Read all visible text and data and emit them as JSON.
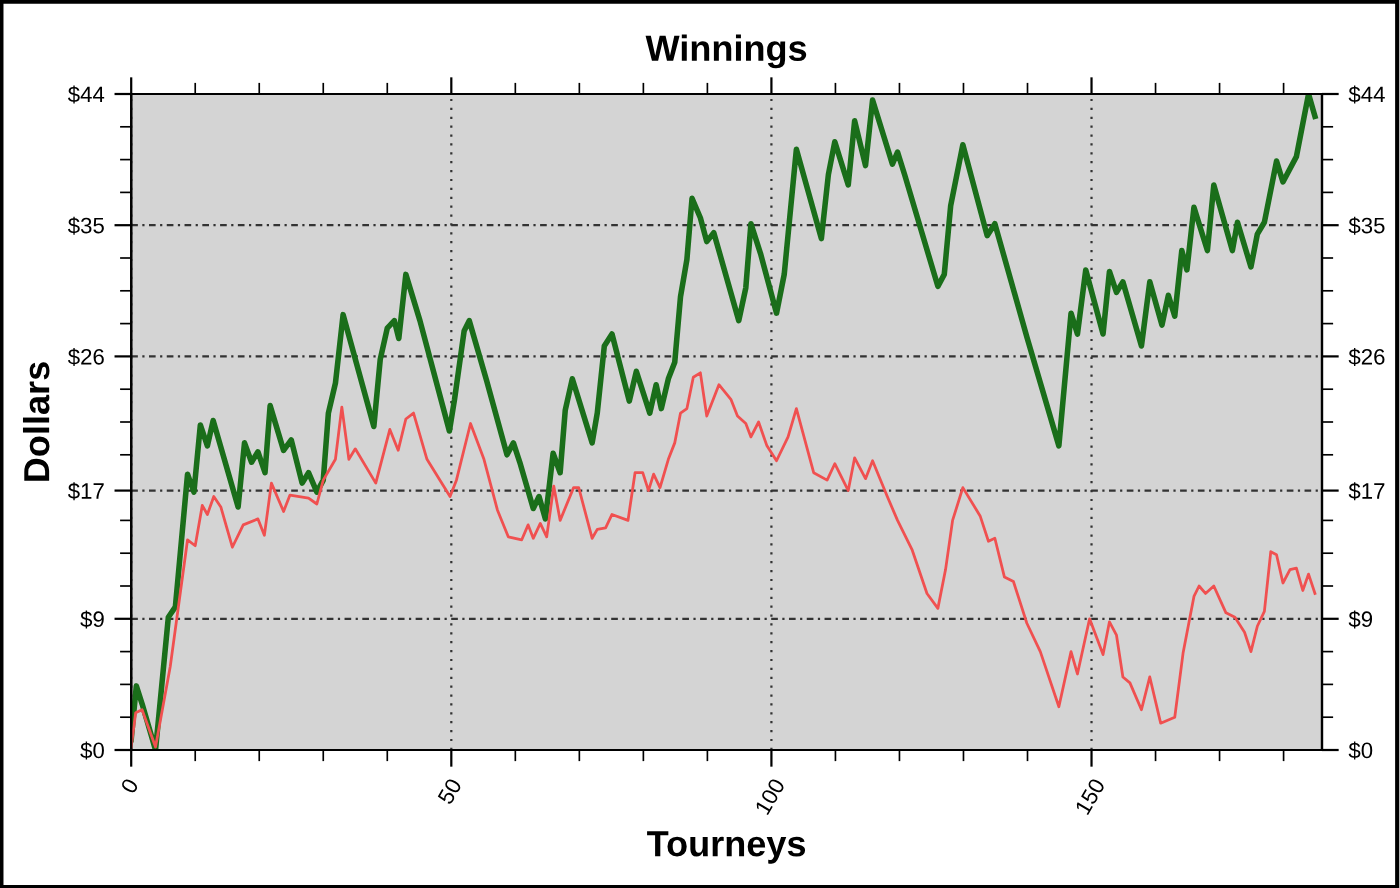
{
  "chart_data": {
    "type": "line",
    "title": "Winnings",
    "xlabel": "Tourneys",
    "ylabel": "Dollars",
    "grid": true,
    "legend": false,
    "marker": "none",
    "line_style": "solid",
    "xlim": [
      0,
      186
    ],
    "ylim": [
      0,
      44
    ],
    "y2lim": [
      0,
      44
    ],
    "xticks": [
      0,
      {
        "value": 10,
        "label": null
      },
      {
        "value": 20,
        "label": null
      },
      {
        "value": 30,
        "label": null
      },
      {
        "value": 40,
        "label": null
      },
      50,
      {
        "value": 60,
        "label": null
      },
      {
        "value": 70,
        "label": null
      },
      {
        "value": 80,
        "label": null
      },
      {
        "value": 90,
        "label": null
      },
      100,
      {
        "value": 110,
        "label": null
      },
      {
        "value": 120,
        "label": null
      },
      {
        "value": 130,
        "label": null
      },
      {
        "value": 140,
        "label": null
      },
      150,
      {
        "value": 160,
        "label": null
      },
      {
        "value": 170,
        "label": null
      },
      {
        "value": 180,
        "label": null
      }
    ],
    "yticks": [
      {
        "value": 0,
        "label": "$0"
      },
      {
        "value": 2.2,
        "label": null
      },
      {
        "value": 4.4,
        "label": null
      },
      {
        "value": 6.6,
        "label": null
      },
      {
        "value": 8.8,
        "label": "$9"
      },
      {
        "value": 11,
        "label": null
      },
      {
        "value": 13.2,
        "label": null
      },
      {
        "value": 15.4,
        "label": null
      },
      {
        "value": 17.4,
        "label": "$17"
      },
      {
        "value": 19.8,
        "label": null
      },
      {
        "value": 22,
        "label": null
      },
      {
        "value": 24.2,
        "label": null
      },
      {
        "value": 26.4,
        "label": "$26"
      },
      {
        "value": 28.6,
        "label": null
      },
      {
        "value": 30.8,
        "label": null
      },
      {
        "value": 33,
        "label": null
      },
      {
        "value": 35.2,
        "label": "$35"
      },
      {
        "value": 37.4,
        "label": null
      },
      {
        "value": 39.6,
        "label": null
      },
      {
        "value": 41.8,
        "label": null
      },
      {
        "value": 44,
        "label": "$44"
      }
    ],
    "y2ticks": [
      {
        "value": 0,
        "label": "$0"
      },
      {
        "value": 2.2,
        "label": null
      },
      {
        "value": 4.4,
        "label": null
      },
      {
        "value": 6.6,
        "label": null
      },
      {
        "value": 8.8,
        "label": "$9"
      },
      {
        "value": 11,
        "label": null
      },
      {
        "value": 13.2,
        "label": null
      },
      {
        "value": 15.4,
        "label": null
      },
      {
        "value": 17.4,
        "label": "$17"
      },
      {
        "value": 19.8,
        "label": null
      },
      {
        "value": 22,
        "label": null
      },
      {
        "value": 24.2,
        "label": null
      },
      {
        "value": 26.4,
        "label": "$26"
      },
      {
        "value": 28.6,
        "label": null
      },
      {
        "value": 30.8,
        "label": null
      },
      {
        "value": 33,
        "label": null
      },
      {
        "value": 35.2,
        "label": "$35"
      },
      {
        "value": 37.4,
        "label": null
      },
      {
        "value": 39.6,
        "label": null
      },
      {
        "value": 41.8,
        "label": null
      },
      {
        "value": 44,
        "label": "$44"
      }
    ],
    "series": [
      {
        "color": "#1a6e1a",
        "x": [
          0,
          0.8,
          1.7,
          3.8,
          5.8,
          6.9,
          8.8,
          9.8,
          10.8,
          11.9,
          12.8,
          16.7,
          17.7,
          18.8,
          19.8,
          20.9,
          21.7,
          23.8,
          25.0,
          26.7,
          27.7,
          29.0,
          30.0,
          30.8,
          31.9,
          33.1,
          37.9,
          38.9,
          40.0,
          41.1,
          41.8,
          42.9,
          45.1,
          49.7,
          50.5,
          52.0,
          52.8,
          55.5,
          58.7,
          59.7,
          60.7,
          62.8,
          63.7,
          64.7,
          65.9,
          67.0,
          67.8,
          68.9,
          72.0,
          72.8,
          73.9,
          75.1,
          77.8,
          78.9,
          81.0,
          82.0,
          82.8,
          83.9,
          84.9,
          85.8,
          86.8,
          87.6,
          88.9,
          89.9,
          91.0,
          94.9,
          96.0,
          96.8,
          98.3,
          100.8,
          102.0,
          103.9,
          107.8,
          108.9,
          109.9,
          112.0,
          113.0,
          114.7,
          115.8,
          118.9,
          119.7,
          120.8,
          126.0,
          127.0,
          128.0,
          129.9,
          133.7,
          134.9,
          139.9,
          144.9,
          146.8,
          147.8,
          149.1,
          151.8,
          152.8,
          153.9,
          154.9,
          157.8,
          159.1,
          161.0,
          162.0,
          163.0,
          164.1,
          164.9,
          166.0,
          168.1,
          169.1,
          172.0,
          172.8,
          174.9,
          175.9,
          177.0,
          178.9,
          179.9,
          182.0,
          183.9,
          184.9
        ],
        "values": [
          0.7,
          4.3,
          3.1,
          0,
          8.9,
          9.6,
          18.5,
          17.3,
          21.8,
          20.4,
          22.1,
          16.3,
          20.6,
          19.3,
          20.0,
          18.6,
          23.1,
          20.1,
          20.8,
          17.9,
          18.6,
          17.3,
          18.1,
          22.6,
          24.6,
          29.2,
          21.7,
          26.2,
          28.3,
          28.8,
          27.6,
          31.9,
          28.8,
          21.4,
          23.5,
          28.1,
          28.8,
          24.8,
          19.8,
          20.6,
          19.3,
          16.2,
          17.0,
          15.5,
          19.9,
          18.6,
          22.8,
          24.9,
          20.6,
          22.6,
          27.1,
          27.9,
          23.4,
          25.4,
          22.6,
          24.5,
          22.9,
          24.9,
          26.0,
          30.4,
          32.9,
          37.0,
          35.7,
          34.1,
          34.7,
          28.8,
          31.0,
          35.3,
          33.3,
          29.3,
          31.9,
          40.3,
          34.3,
          38.6,
          40.8,
          37.9,
          42.2,
          39.2,
          43.6,
          39.3,
          40.1,
          38.6,
          31.1,
          31.9,
          36.5,
          40.6,
          34.5,
          35.3,
          27.7,
          20.4,
          29.3,
          27.9,
          32.2,
          27.9,
          32.1,
          30.7,
          31.4,
          27.1,
          31.4,
          28.5,
          30.5,
          29.1,
          33.5,
          32.2,
          36.4,
          33.5,
          37.9,
          33.5,
          35.4,
          32.4,
          34.6,
          35.4,
          39.5,
          38.1,
          39.8,
          44.0,
          42.5
        ]
      },
      {
        "color": "#f05050",
        "x": [
          0,
          0.7,
          1.7,
          3.8,
          6.1,
          8.8,
          10.0,
          11.1,
          11.9,
          12.9,
          14.0,
          15.8,
          17.5,
          19.8,
          20.8,
          21.9,
          23.8,
          24.8,
          27.7,
          29.0,
          30.0,
          31.9,
          32.9,
          34.0,
          35.0,
          38.2,
          40.4,
          41.7,
          42.9,
          44.1,
          46.2,
          49.8,
          50.8,
          53.0,
          55.1,
          57.2,
          58.9,
          61.0,
          62.0,
          62.8,
          63.9,
          64.9,
          66.0,
          67.0,
          69.1,
          69.9,
          72.0,
          72.8,
          74.1,
          75.1,
          77.6,
          78.7,
          79.9,
          80.8,
          81.6,
          82.6,
          83.9,
          84.9,
          85.8,
          86.8,
          87.8,
          88.9,
          89.9,
          91.8,
          93.7,
          94.7,
          96.0,
          96.8,
          98.0,
          99.3,
          100.8,
          102.6,
          103.9,
          106.6,
          108.7,
          109.9,
          112.0,
          113.0,
          114.7,
          115.8,
          118.1,
          119.7,
          122.0,
          124.3,
          126.0,
          127.2,
          128.3,
          129.9,
          132.6,
          133.9,
          134.9,
          136.4,
          137.8,
          139.9,
          142.0,
          144.9,
          146.8,
          147.8,
          149.7,
          151.8,
          152.8,
          153.9,
          154.9,
          156.0,
          157.8,
          159.1,
          160.8,
          163.0,
          164.3,
          166.0,
          166.8,
          167.8,
          169.1,
          171.0,
          172.4,
          173.9,
          174.9,
          175.9,
          177.0,
          178.0,
          178.9,
          179.9,
          181.0,
          182.0,
          183.0,
          183.9,
          184.9
        ],
        "values": [
          0.2,
          2.5,
          2.7,
          0.2,
          5.6,
          14.1,
          13.7,
          16.4,
          15.8,
          17.0,
          16.3,
          13.6,
          15.1,
          15.5,
          14.4,
          17.9,
          16.0,
          17.1,
          16.9,
          16.5,
          18.1,
          19.5,
          23.0,
          19.5,
          20.2,
          17.9,
          21.5,
          20.1,
          22.2,
          22.6,
          19.5,
          17.0,
          18.1,
          21.9,
          19.5,
          16.1,
          14.3,
          14.1,
          15.1,
          14.2,
          15.2,
          14.3,
          17.7,
          15.4,
          17.6,
          17.6,
          14.2,
          14.8,
          14.9,
          15.8,
          15.4,
          18.6,
          18.6,
          17.4,
          18.5,
          17.6,
          19.5,
          20.6,
          22.6,
          22.9,
          25.0,
          25.3,
          22.4,
          24.5,
          23.5,
          22.4,
          21.9,
          21.0,
          22.0,
          20.4,
          19.4,
          21.0,
          22.9,
          18.6,
          18.1,
          19.2,
          17.4,
          19.6,
          18.2,
          19.4,
          17.0,
          15.4,
          13.4,
          10.5,
          9.5,
          12.1,
          15.4,
          17.6,
          15.7,
          14.0,
          14.2,
          11.6,
          11.3,
          8.5,
          6.6,
          2.9,
          6.6,
          5.1,
          8.8,
          6.4,
          8.6,
          7.7,
          4.9,
          4.5,
          2.7,
          4.9,
          1.8,
          2.2,
          6.5,
          10.3,
          11.0,
          10.5,
          11.0,
          9.2,
          8.9,
          7.9,
          6.6,
          8.3,
          9.3,
          13.3,
          13.1,
          11.2,
          12.1,
          12.2,
          10.7,
          11.8,
          10.5
        ]
      }
    ]
  }
}
